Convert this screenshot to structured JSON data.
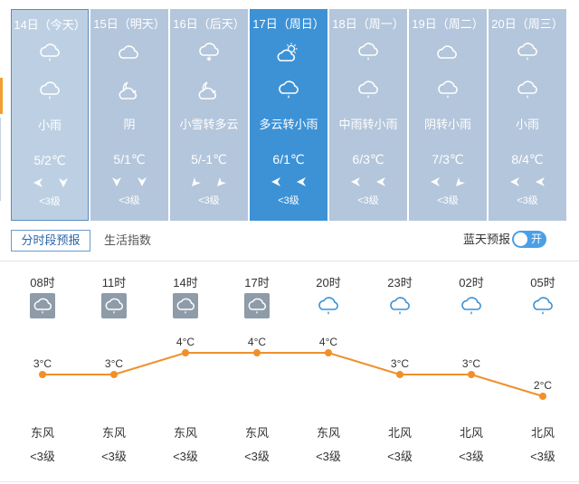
{
  "days": [
    {
      "date": "14日（今天）",
      "weather": "小雨",
      "temp": "5/2℃",
      "wind": "<3级",
      "icons": [
        "cloud-rain-icon",
        "cloud-rain-icon"
      ],
      "winds": [
        "wind-east-arrow-icon",
        "wind-north-arrow-icon"
      ]
    },
    {
      "date": "15日（明天）",
      "weather": "阴",
      "temp": "5/1℃",
      "wind": "<3级",
      "icons": [
        "overcast-cloud-icon",
        "partly-cloudy-night-icon"
      ],
      "winds": [
        "wind-north-arrow-icon",
        "wind-north-arrow-icon"
      ]
    },
    {
      "date": "16日（后天）",
      "weather": "小雪转多云",
      "temp": "5/-1℃",
      "wind": "<3级",
      "icons": [
        "cloud-snow-icon",
        "partly-cloudy-night-icon"
      ],
      "winds": [
        "wind-southwest-arrow-icon",
        "wind-southwest-arrow-icon"
      ]
    },
    {
      "date": "17日（周日）",
      "weather": "多云转小雨",
      "temp": "6/1℃",
      "wind": "<3级",
      "icons": [
        "partly-cloudy-day-icon",
        "cloud-rain-icon"
      ],
      "winds": [
        "wind-east-arrow-icon",
        "wind-east-arrow-icon"
      ]
    },
    {
      "date": "18日（周一）",
      "weather": "中雨转小雨",
      "temp": "6/3℃",
      "wind": "<3级",
      "icons": [
        "cloud-rain-icon",
        "cloud-rain-icon"
      ],
      "winds": [
        "wind-east-arrow-icon",
        "wind-east-arrow-icon"
      ]
    },
    {
      "date": "19日（周二）",
      "weather": "阴转小雨",
      "temp": "7/3℃",
      "wind": "<3级",
      "icons": [
        "overcast-cloud-icon",
        "cloud-rain-icon"
      ],
      "winds": [
        "wind-east-arrow-icon",
        "wind-southwest-arrow-icon"
      ]
    },
    {
      "date": "20日（周三）",
      "weather": "小雨",
      "temp": "8/4℃",
      "wind": "<3级",
      "icons": [
        "cloud-rain-icon",
        "cloud-rain-icon"
      ],
      "winds": [
        "wind-east-arrow-icon",
        "wind-east-arrow-icon"
      ]
    }
  ],
  "tabs": {
    "hourly": "分时段预报",
    "life": "生活指数"
  },
  "bluesky": {
    "label": "蓝天预报",
    "toggle": "开"
  },
  "hourly": [
    {
      "time": "08时",
      "temp": 3,
      "temp_label": "3°C",
      "wind_dir": "东风",
      "wind_level": "<3级",
      "icon": "rain-tile-icon"
    },
    {
      "time": "11时",
      "temp": 3,
      "temp_label": "3°C",
      "wind_dir": "东风",
      "wind_level": "<3级",
      "icon": "rain-tile-icon"
    },
    {
      "time": "14时",
      "temp": 4,
      "temp_label": "4°C",
      "wind_dir": "东风",
      "wind_level": "<3级",
      "icon": "rain-tile-icon"
    },
    {
      "time": "17时",
      "temp": 4,
      "temp_label": "4°C",
      "wind_dir": "东风",
      "wind_level": "<3级",
      "icon": "rain-tile-icon"
    },
    {
      "time": "20时",
      "temp": 4,
      "temp_label": "4°C",
      "wind_dir": "东风",
      "wind_level": "<3级",
      "icon": "cloud-rain-icon"
    },
    {
      "time": "23时",
      "temp": 3,
      "temp_label": "3°C",
      "wind_dir": "北风",
      "wind_level": "<3级",
      "icon": "cloud-rain-icon"
    },
    {
      "time": "02时",
      "temp": 3,
      "temp_label": "3°C",
      "wind_dir": "北风",
      "wind_level": "<3级",
      "icon": "cloud-rain-icon"
    },
    {
      "time": "05时",
      "temp": 2,
      "temp_label": "2°C",
      "wind_dir": "北风",
      "wind_level": "<3级",
      "icon": "cloud-rain-icon"
    }
  ],
  "chart_data": {
    "type": "line",
    "categories": [
      "08时",
      "11时",
      "14时",
      "17时",
      "20时",
      "23时",
      "02时",
      "05时"
    ],
    "series": [
      {
        "values": [
          3,
          3,
          4,
          4,
          4,
          3,
          3,
          2
        ]
      }
    ],
    "labels": [
      "3°C",
      "3°C",
      "4°C",
      "4°C",
      "4°C",
      "3°C",
      "3°C",
      "2°C"
    ],
    "xlabel": "",
    "ylabel": ""
  },
  "colors": {
    "line": "#f0902a",
    "active_day": "#3d92d6",
    "day_bg": "#b4c6db",
    "toggle": "#4aa0e6"
  }
}
